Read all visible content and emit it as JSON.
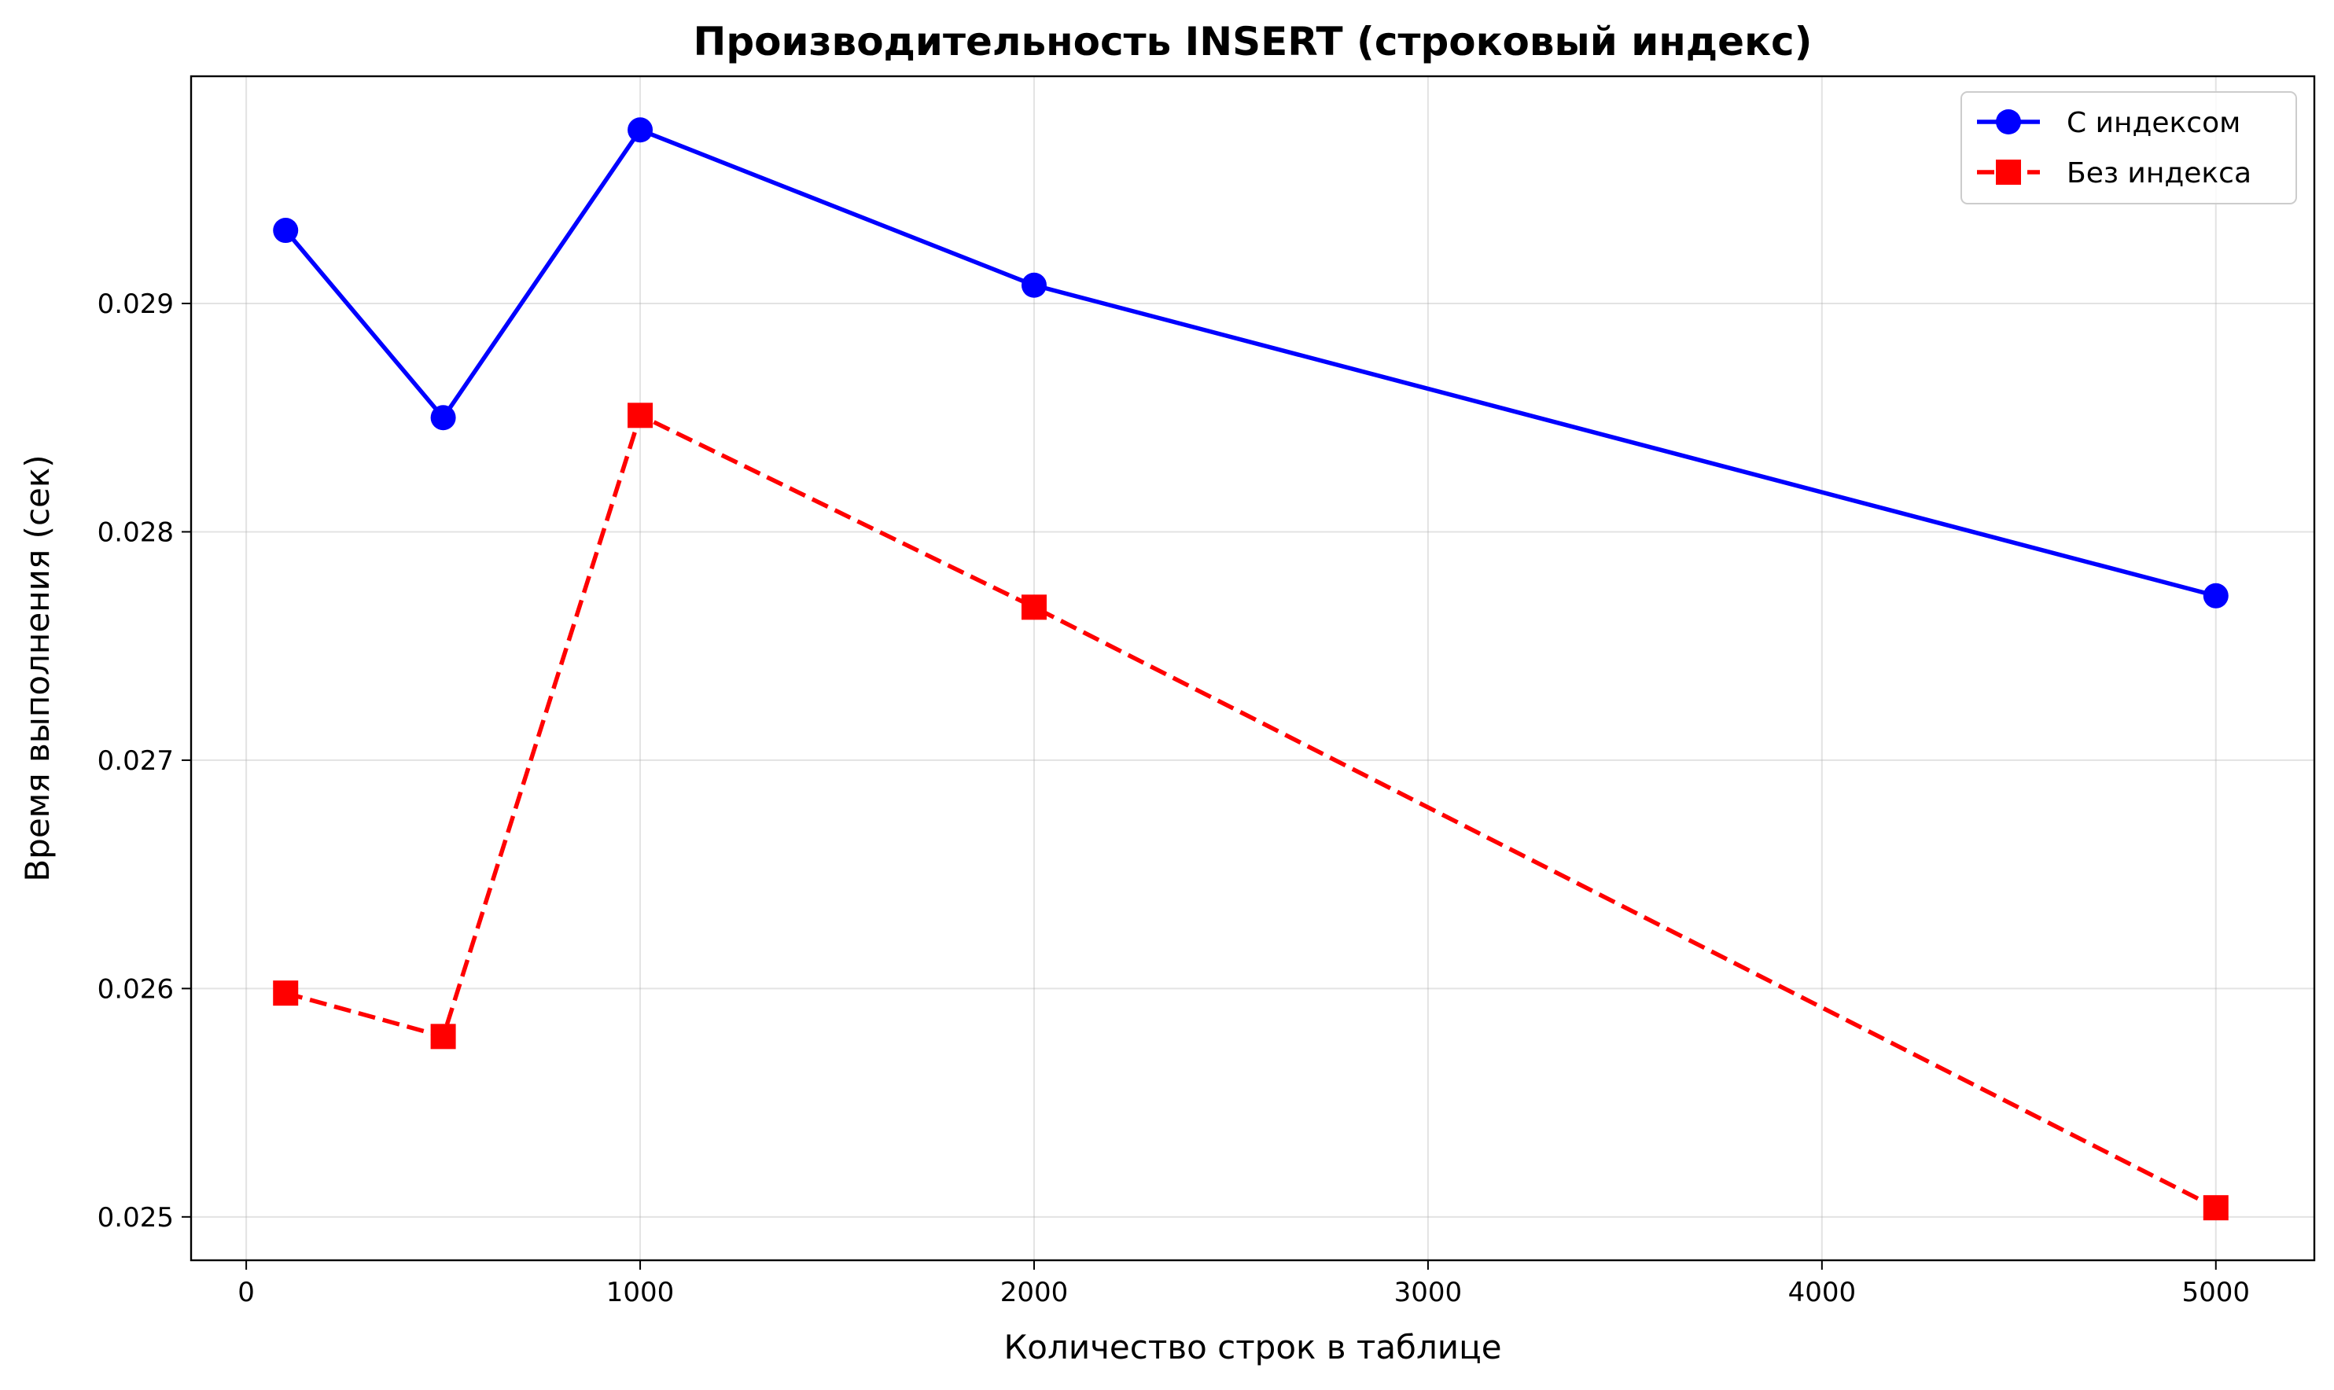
{
  "chart_data": {
    "type": "line",
    "title": "Производительность INSERT (строковый индекс)",
    "xlabel": "Количество строк в таблице",
    "ylabel": "Время выполнения (сек)",
    "xlim": [
      -140,
      5250
    ],
    "ylim": [
      0.02481,
      0.029995
    ],
    "xticks": [
      0,
      1000,
      2000,
      3000,
      4000,
      5000
    ],
    "xtick_labels": [
      "0",
      "1000",
      "2000",
      "3000",
      "4000",
      "5000"
    ],
    "yticks": [
      0.025,
      0.026,
      0.027,
      0.028,
      0.029
    ],
    "ytick_labels": [
      "0.025",
      "0.026",
      "0.027",
      "0.028",
      "0.029"
    ],
    "grid": true,
    "legend_position": "top-right",
    "x": [
      100,
      500,
      1000,
      2000,
      5000
    ],
    "series": [
      {
        "name": "С индексом",
        "values": [
          0.02932,
          0.0285,
          0.02976,
          0.02908,
          0.02772
        ],
        "color": "#0000ff",
        "line_style": "solid",
        "marker": "circle"
      },
      {
        "name": "Без индекса",
        "values": [
          0.02598,
          0.02579,
          0.02851,
          0.02767,
          0.02504
        ],
        "color": "#ff0000",
        "line_style": "dashed",
        "marker": "square"
      }
    ]
  }
}
